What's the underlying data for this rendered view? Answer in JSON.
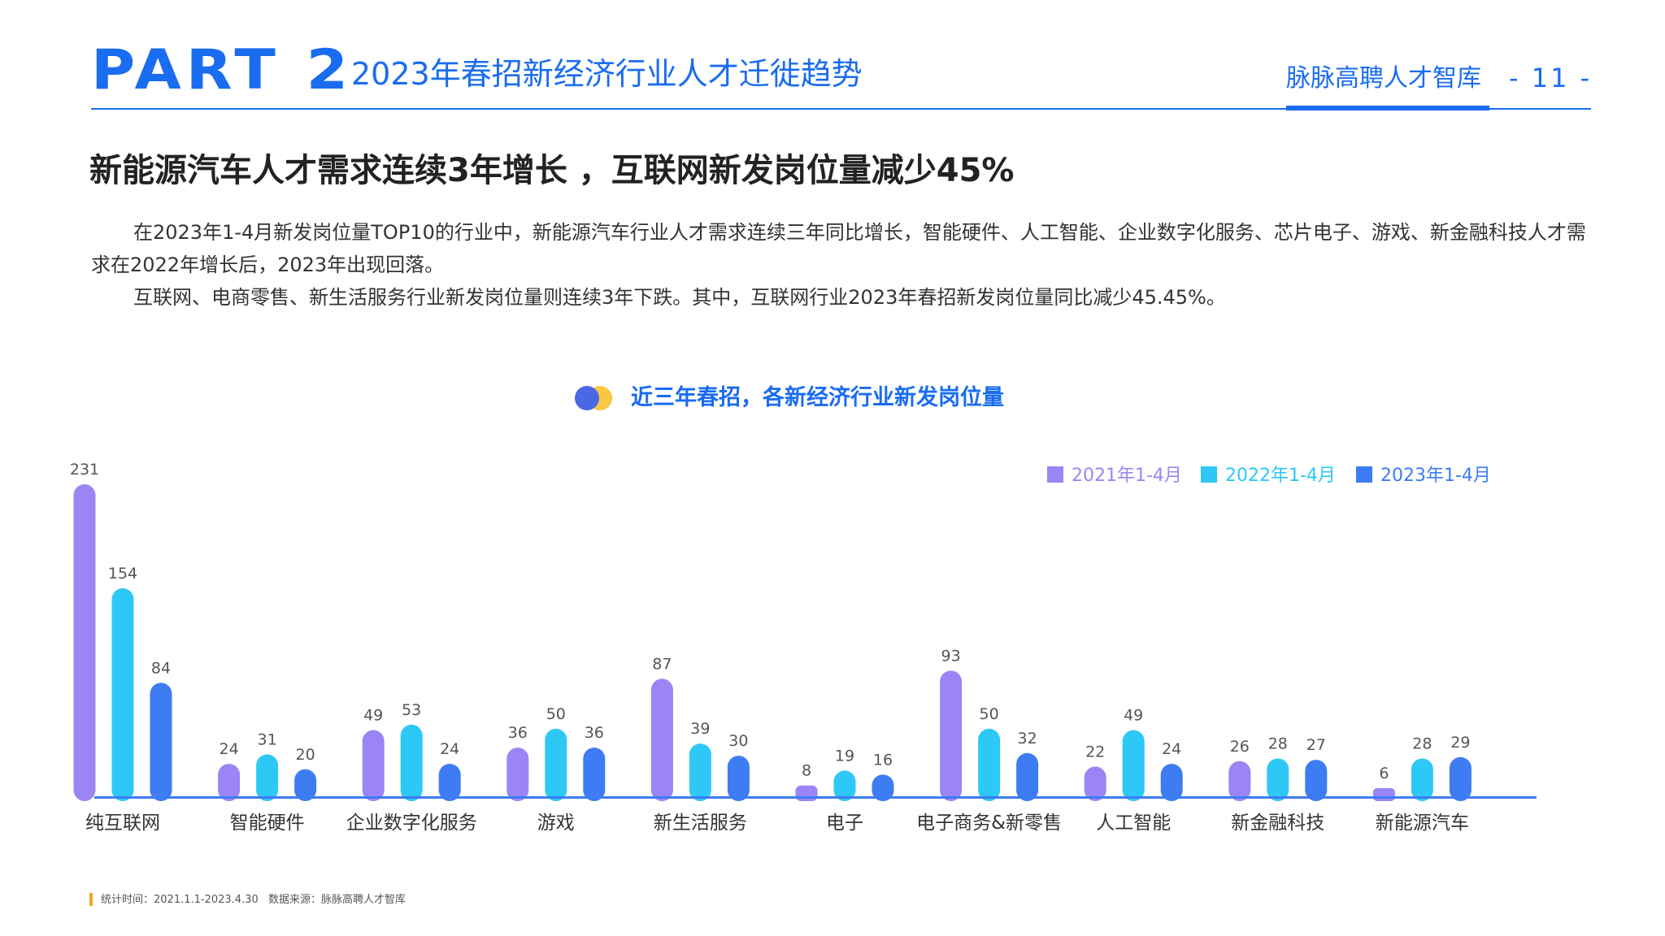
{
  "header": {
    "part": "PART 2",
    "title": "2023年春招新经济行业人才迁徙趋势",
    "brand": "脉脉高聘人才智库",
    "page_number": "- 11 -"
  },
  "headline": "新能源汽车人才需求连续3年增长 ，互联网新发岗位量减少45%",
  "paragraphs": [
    "在2023年1-4月新发岗位量TOP10的行业中，新能源汽车行业人才需求连续三年同比增长，智能硬件、人工智能、企业数字化服务、芯片电子、游戏、新金融科技人才需求在2022年增长后，2023年出现回落。",
    "互联网、电商零售、新生活服务行业新发岗位量则连续3年下跌。其中，互联网行业2023年春招新发岗位量同比减少45.45%。"
  ],
  "chart_title": "近三年春招，各新经济行业新发岗位量",
  "colors": {
    "accent": "#1a6cf0",
    "series_2021": "#9b85f5",
    "series_2022": "#2ec8f7",
    "series_2023": "#3d7cf2",
    "title_dot_blue": "#4a67e6",
    "title_dot_yellow": "#f7c843"
  },
  "chart_data": {
    "type": "bar",
    "categories": [
      "纯互联网",
      "智能硬件",
      "企业数字化服务",
      "游戏",
      "新生活服务",
      "电子",
      "电子商务&新零售",
      "人工智能",
      "新金融科技",
      "新能源汽车"
    ],
    "series": [
      {
        "name": "2021年1-4月",
        "values": [
          231,
          24,
          49,
          36,
          87,
          8,
          93,
          22,
          26,
          6
        ]
      },
      {
        "name": "2022年1-4月",
        "values": [
          154,
          31,
          53,
          50,
          39,
          19,
          50,
          49,
          28,
          28
        ]
      },
      {
        "name": "2023年1-4月",
        "values": [
          84,
          20,
          24,
          36,
          30,
          16,
          32,
          24,
          27,
          29
        ]
      }
    ],
    "ylim": [
      0,
      231
    ],
    "title": "近三年春招，各新经济行业新发岗位量",
    "xlabel": "",
    "ylabel": "",
    "legend": "top-right",
    "grid": false,
    "data_labels": true
  },
  "footer": {
    "time": "统计时间：2021.1.1-2023.4.30",
    "source": "数据来源：脉脉高聘人才智库"
  }
}
